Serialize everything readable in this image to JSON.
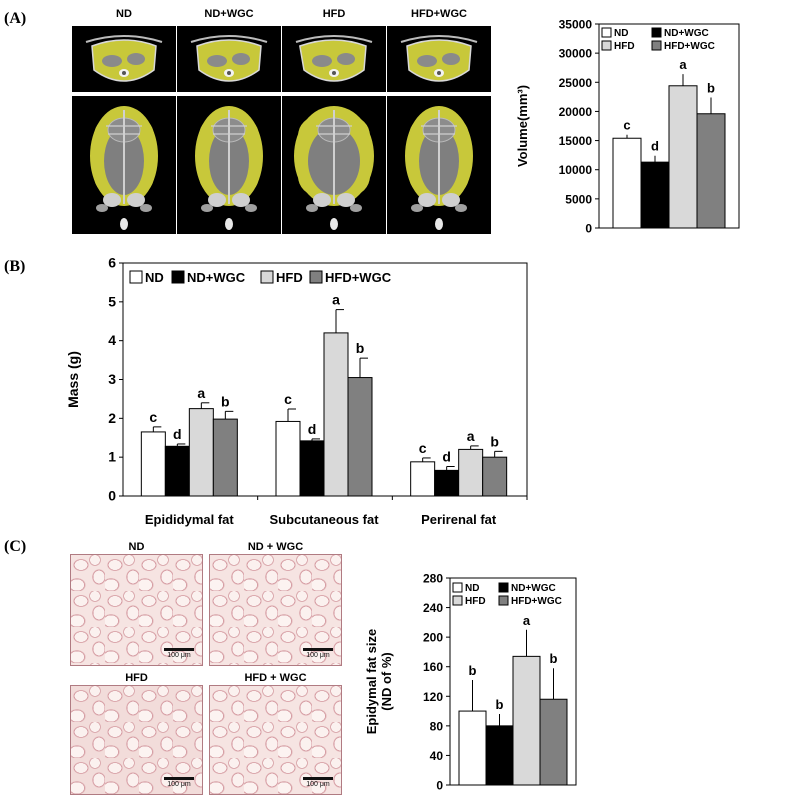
{
  "panels": {
    "a_letter": "(A)",
    "b_letter": "(B)",
    "c_letter": "(C)"
  },
  "ct_labels": [
    "ND",
    "ND+WGC",
    "HFD",
    "HFD+WGC"
  ],
  "histo_labels": [
    "ND",
    "ND + WGC",
    "HFD",
    "HFD + WGC"
  ],
  "scale_bar_text": "100 μm",
  "colors": {
    "ND": "#ffffff",
    "ND+WGC": "#000000",
    "HFD": "#d9d9d9",
    "HFD+WGC": "#808080",
    "ct_fat": "#c8c83a"
  },
  "chart_data": [
    {
      "id": "volume",
      "type": "bar",
      "categories": [
        ""
      ],
      "series": [
        {
          "name": "ND",
          "values": [
            15400
          ],
          "errors": [
            600
          ],
          "letters": [
            "c"
          ]
        },
        {
          "name": "ND+WGC",
          "values": [
            11300
          ],
          "errors": [
            1100
          ],
          "letters": [
            "d"
          ]
        },
        {
          "name": "HFD",
          "values": [
            24400
          ],
          "errors": [
            2000
          ],
          "letters": [
            "a"
          ]
        },
        {
          "name": "HFD+WGC",
          "values": [
            19600
          ],
          "errors": [
            2800
          ],
          "letters": [
            "b"
          ]
        }
      ],
      "ylabel": "Volume(mm³)",
      "ylim": [
        0,
        35000
      ],
      "yticks": [
        "0",
        "5000",
        "10000",
        "15000",
        "20000",
        "25000",
        "30000",
        "35000"
      ],
      "legend": "top-left, two columns"
    },
    {
      "id": "mass",
      "type": "bar",
      "categories": [
        "Epididymal fat",
        "Subcutaneous fat",
        "Perirenal fat"
      ],
      "series": [
        {
          "name": "ND",
          "values": [
            1.65,
            1.92,
            0.88
          ],
          "errors": [
            0.13,
            0.32,
            0.1
          ],
          "letters": [
            "c",
            "c",
            "c"
          ]
        },
        {
          "name": "ND+WGC",
          "values": [
            1.28,
            1.42,
            0.66
          ],
          "errors": [
            0.06,
            0.05,
            0.1
          ],
          "letters": [
            "d",
            "d",
            "d"
          ]
        },
        {
          "name": "HFD",
          "values": [
            2.25,
            4.2,
            1.2
          ],
          "errors": [
            0.15,
            0.6,
            0.09
          ],
          "letters": [
            "a",
            "a",
            "a"
          ]
        },
        {
          "name": "HFD+WGC",
          "values": [
            1.98,
            3.05,
            1.0
          ],
          "errors": [
            0.2,
            0.5,
            0.15
          ],
          "letters": [
            "b",
            "b",
            "b"
          ]
        }
      ],
      "ylabel": "Mass (g)",
      "ylim": [
        0,
        6
      ],
      "yticks": [
        "0",
        "1",
        "2",
        "3",
        "4",
        "5",
        "6"
      ],
      "legend": "top, one row"
    },
    {
      "id": "fatsize",
      "type": "bar",
      "categories": [
        ""
      ],
      "series": [
        {
          "name": "ND",
          "values": [
            100
          ],
          "errors": [
            42
          ],
          "letters": [
            "b"
          ]
        },
        {
          "name": "ND+WGC",
          "values": [
            80
          ],
          "errors": [
            16
          ],
          "letters": [
            "b"
          ]
        },
        {
          "name": "HFD",
          "values": [
            174
          ],
          "errors": [
            36
          ],
          "letters": [
            "a"
          ]
        },
        {
          "name": "HFD+WGC",
          "values": [
            116
          ],
          "errors": [
            42
          ],
          "letters": [
            "b"
          ]
        }
      ],
      "ylabel": [
        "Epidymal fat size",
        "(ND of %)"
      ],
      "ylim": [
        0,
        280
      ],
      "yticks": [
        "0",
        "40",
        "80",
        "120",
        "160",
        "200",
        "240",
        "280"
      ],
      "legend": "top-left, two columns"
    }
  ]
}
